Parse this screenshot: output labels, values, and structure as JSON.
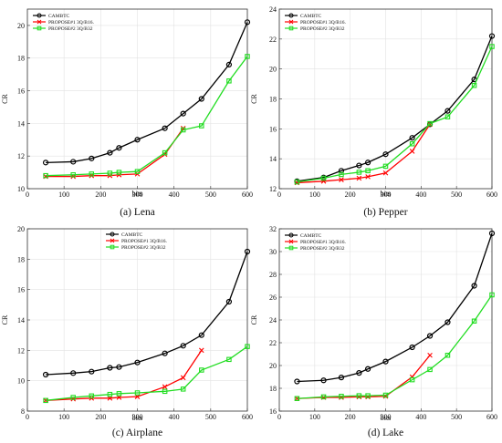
{
  "chart_data": [
    {
      "type": "line",
      "caption": "(a) Lena",
      "xlabel": "bits",
      "ylabel": "CR",
      "xlim": [
        0,
        600
      ],
      "ylim": [
        10,
        21
      ],
      "xticks": [
        0,
        100,
        200,
        300,
        400,
        500,
        600
      ],
      "yticks": [
        10,
        12,
        14,
        16,
        18,
        20
      ],
      "grid": true,
      "legend": "top-left",
      "series": [
        {
          "name": "CAMBTC",
          "color": "#000000",
          "marker": "circle",
          "x": [
            50,
            125,
            175,
            225,
            250,
            300,
            375,
            425,
            475,
            550,
            600
          ],
          "y": [
            11.6,
            11.65,
            11.85,
            12.2,
            12.5,
            13.0,
            13.7,
            14.6,
            15.5,
            17.6,
            20.2
          ]
        },
        {
          "name": "PROPOSE#1 3Q/B16.",
          "color": "#ff0000",
          "marker": "x",
          "x": [
            50,
            125,
            175,
            225,
            250,
            300,
            375,
            425
          ],
          "y": [
            10.75,
            10.75,
            10.8,
            10.8,
            10.85,
            10.9,
            12.1,
            13.7
          ]
        },
        {
          "name": "PROPOSE#2 3Q/B32",
          "color": "#22dd22",
          "marker": "square",
          "x": [
            50,
            125,
            175,
            225,
            250,
            300,
            375,
            425,
            475,
            550,
            600
          ],
          "y": [
            10.8,
            10.85,
            10.9,
            10.95,
            11.0,
            11.05,
            12.2,
            13.6,
            13.85,
            16.6,
            18.1
          ]
        }
      ]
    },
    {
      "type": "line",
      "caption": "(b) Pepper",
      "xlabel": "bits",
      "ylabel": "CR",
      "xlim": [
        0,
        600
      ],
      "ylim": [
        12,
        24
      ],
      "xticks": [
        0,
        100,
        200,
        300,
        400,
        500,
        600
      ],
      "yticks": [
        12,
        14,
        16,
        18,
        20,
        22,
        24
      ],
      "grid": true,
      "legend": "top-left",
      "series": [
        {
          "name": "CAMBTC",
          "color": "#000000",
          "marker": "circle",
          "x": [
            50,
            125,
            175,
            225,
            250,
            300,
            375,
            425,
            475,
            550,
            600
          ],
          "y": [
            12.5,
            12.75,
            13.2,
            13.55,
            13.75,
            14.3,
            15.4,
            16.3,
            17.2,
            19.3,
            22.2
          ]
        },
        {
          "name": "PROPOSE#1 3Q/B16.",
          "color": "#ff0000",
          "marker": "x",
          "x": [
            50,
            125,
            175,
            225,
            250,
            300,
            375,
            425
          ],
          "y": [
            12.4,
            12.5,
            12.6,
            12.7,
            12.8,
            13.05,
            14.5,
            16.3
          ]
        },
        {
          "name": "PROPOSE#2 3Q/B32",
          "color": "#22dd22",
          "marker": "square",
          "x": [
            50,
            125,
            175,
            225,
            250,
            300,
            375,
            425,
            475,
            550,
            600
          ],
          "y": [
            12.45,
            12.7,
            12.95,
            13.1,
            13.2,
            13.5,
            15.0,
            16.35,
            16.8,
            18.9,
            21.5
          ]
        }
      ]
    },
    {
      "type": "line",
      "caption": "(c) Airplane",
      "xlabel": "bits",
      "ylabel": "CR",
      "xlim": [
        0,
        600
      ],
      "ylim": [
        8,
        20
      ],
      "xticks": [
        0,
        100,
        200,
        300,
        400,
        500,
        600
      ],
      "yticks": [
        8,
        10,
        12,
        14,
        16,
        18,
        20
      ],
      "grid": true,
      "legend": "top-right",
      "series": [
        {
          "name": "CAMBTC",
          "color": "#000000",
          "marker": "circle",
          "x": [
            50,
            125,
            175,
            225,
            250,
            300,
            375,
            425,
            475,
            550,
            600
          ],
          "y": [
            10.4,
            10.5,
            10.6,
            10.85,
            10.9,
            11.2,
            11.8,
            12.3,
            13.0,
            15.2,
            18.5
          ]
        },
        {
          "name": "PROPOSE#1 3Q/B16.",
          "color": "#ff0000",
          "marker": "x",
          "x": [
            50,
            125,
            175,
            225,
            250,
            300,
            375,
            425,
            475
          ],
          "y": [
            8.7,
            8.8,
            8.85,
            8.85,
            8.9,
            8.95,
            9.6,
            10.2,
            12.0
          ]
        },
        {
          "name": "PROPOSE#2 3Q/B32",
          "color": "#22dd22",
          "marker": "square",
          "x": [
            50,
            125,
            175,
            225,
            250,
            300,
            375,
            425,
            475,
            550,
            600
          ],
          "y": [
            8.7,
            8.9,
            9.0,
            9.1,
            9.15,
            9.2,
            9.3,
            9.45,
            10.7,
            11.4,
            12.25
          ]
        }
      ]
    },
    {
      "type": "line",
      "caption": "(d) Lake",
      "xlabel": "bits",
      "ylabel": "CR",
      "xlim": [
        0,
        600
      ],
      "ylim": [
        16,
        32
      ],
      "xticks": [
        0,
        100,
        200,
        300,
        400,
        500,
        600
      ],
      "yticks": [
        16,
        18,
        20,
        22,
        24,
        26,
        28,
        30,
        32
      ],
      "grid": true,
      "legend": "top-left",
      "series": [
        {
          "name": "CAMBTC",
          "color": "#000000",
          "marker": "circle",
          "x": [
            50,
            125,
            175,
            225,
            250,
            300,
            375,
            425,
            475,
            550,
            600
          ],
          "y": [
            18.6,
            18.7,
            18.95,
            19.35,
            19.7,
            20.35,
            21.6,
            22.6,
            23.8,
            27.0,
            31.6
          ]
        },
        {
          "name": "PROPOSE#1 3Q/B16.",
          "color": "#ff0000",
          "marker": "x",
          "x": [
            50,
            125,
            175,
            225,
            250,
            300,
            375,
            425
          ],
          "y": [
            17.1,
            17.2,
            17.2,
            17.25,
            17.25,
            17.3,
            19.0,
            20.9
          ]
        },
        {
          "name": "PROPOSE#2 3Q/B32",
          "color": "#22dd22",
          "marker": "square",
          "x": [
            50,
            125,
            175,
            225,
            250,
            300,
            375,
            425,
            475,
            550,
            600
          ],
          "y": [
            17.1,
            17.25,
            17.3,
            17.35,
            17.35,
            17.4,
            18.75,
            19.65,
            20.9,
            23.9,
            26.2
          ]
        }
      ]
    }
  ]
}
